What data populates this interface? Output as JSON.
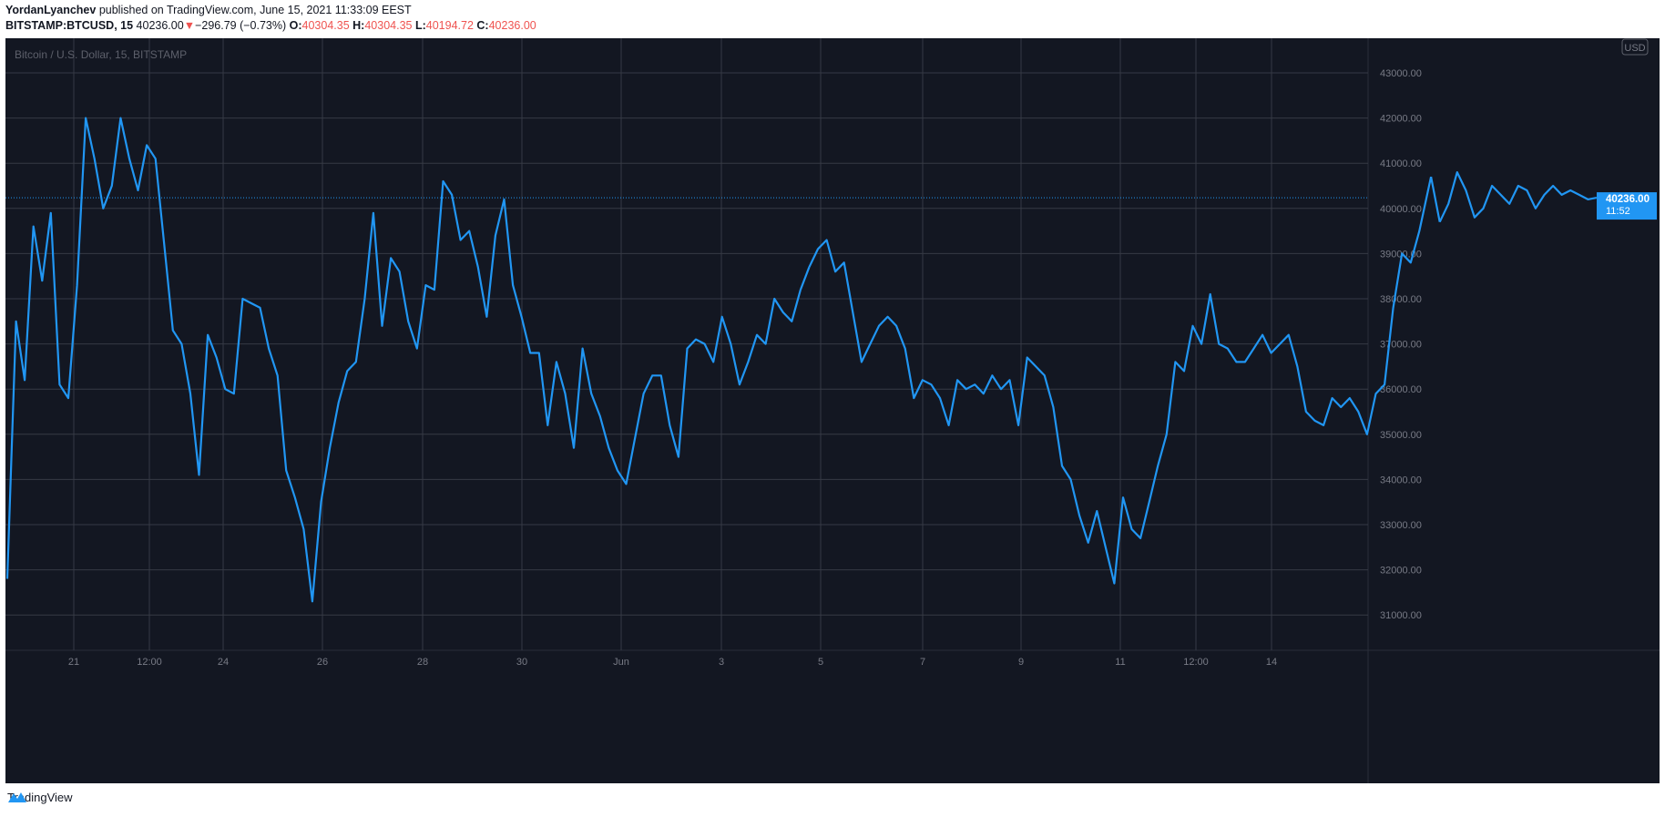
{
  "header": {
    "author": "YordanLyanchev",
    "published_text": "published on TradingView.com, June 15, 2021 11:33:09 EEST",
    "symbol": "BITSTAMP:BTCUSD, 15",
    "last": "40236.00",
    "change_arrow": "▼",
    "change": "−296.79 (−0.73%)",
    "o_label": "O:",
    "o_value": "40304.35",
    "h_label": "H:",
    "h_value": "40304.35",
    "l_label": "L:",
    "l_value": "40194.72",
    "c_label": "C:",
    "c_value": "40236.00"
  },
  "chart_title": "Bitcoin / U.S. Dollar, 15, BITSTAMP",
  "currency_badge": "USD",
  "price_tag": {
    "price": "40236.00",
    "countdown": "11:52"
  },
  "footer": {
    "brand": "TradingView"
  },
  "colors": {
    "background": "#131722",
    "line": "#2196f3",
    "grid": "#363a45",
    "axis_text": "#787b86",
    "down": "#ef5350"
  },
  "chart_data": {
    "type": "line",
    "title": "Bitcoin / U.S. Dollar, 15, BITSTAMP",
    "ylim": [
      30300,
      43700
    ],
    "y_ticks": [
      "43000.00",
      "42000.00",
      "41000.00",
      "40000.00",
      "39000.00",
      "38000.00",
      "37000.00",
      "36000.00",
      "35000.00",
      "34000.00",
      "33000.00",
      "32000.00",
      "31000.00"
    ],
    "x_ticks": [
      "21",
      "12:00",
      "24",
      "26",
      "28",
      "30",
      "Jun",
      "3",
      "5",
      "7",
      "9",
      "11",
      "12:00",
      "14"
    ],
    "last_price": 40236.0,
    "series": [
      {
        "x": [
          0.0,
          0.3,
          0.6,
          0.9,
          1.2,
          1.5,
          1.8,
          2.1,
          2.4,
          2.7,
          3.0,
          3.3,
          3.6,
          3.9,
          4.2,
          4.5,
          4.8,
          5.1,
          5.4,
          5.7,
          6.0,
          6.3,
          6.6,
          6.9,
          7.2,
          7.5,
          7.8,
          8.1,
          8.4,
          8.7,
          9.0,
          9.3,
          9.6,
          9.9,
          10.2,
          10.5,
          10.8,
          11.1,
          11.4,
          11.7,
          12.0,
          12.3,
          12.6,
          12.9,
          13.2,
          13.5,
          13.8,
          14.1,
          14.4,
          14.7,
          15.0,
          15.3,
          15.6,
          15.9,
          16.2,
          16.5,
          16.8,
          17.1,
          17.4,
          17.7,
          18.0,
          18.3,
          18.6,
          18.9,
          19.2,
          19.5,
          19.8,
          20.1,
          20.4,
          20.7,
          21.0,
          21.3,
          21.6,
          21.9,
          22.2,
          22.5,
          22.8,
          23.1,
          23.4,
          23.7,
          24.0,
          24.3,
          24.6,
          24.9,
          25.2,
          25.5,
          25.8,
          26.1,
          26.4,
          26.7,
          27.0,
          27.3
        ],
        "y": [
          31800,
          37500,
          36200,
          39600,
          38400,
          39900,
          36100,
          35800,
          38300,
          42000,
          41100,
          40000,
          40500,
          42000,
          41100,
          40400,
          41400,
          41100,
          39200,
          37300,
          37000,
          35900,
          34100,
          37200,
          36700,
          36000,
          35900,
          38000,
          37900,
          37800,
          36900,
          36300,
          34200,
          33600,
          32900,
          31300,
          33500,
          34700,
          35700,
          36400,
          36600,
          38000,
          39900,
          37400,
          38900,
          38600,
          37500,
          36900,
          38300,
          38200,
          40600,
          40300,
          39300,
          39500,
          38700,
          37600,
          39400,
          40200,
          38300,
          37600,
          36800,
          36800,
          35200,
          36600,
          35900,
          34700,
          36900,
          35900,
          35400,
          34700,
          34200,
          33900,
          34900,
          35900,
          36300,
          36300,
          35200,
          34500,
          36900,
          37100,
          37000,
          36600,
          37600,
          37000,
          36100,
          36600,
          37200,
          37000,
          38000,
          37700,
          37500,
          38200
        ]
      },
      {
        "x": [
          27.6,
          27.9,
          28.2,
          28.5,
          28.8,
          29.1,
          29.4,
          29.7,
          30.0,
          30.3,
          30.6,
          30.9,
          31.2,
          31.5,
          31.8,
          32.1,
          32.4,
          32.7,
          33.0,
          33.3,
          33.6,
          33.9,
          34.2,
          34.5,
          34.8,
          35.1,
          35.4,
          35.7,
          36.0,
          36.3,
          36.6,
          36.9,
          37.2,
          37.5,
          37.8,
          38.1,
          38.4,
          38.7,
          39.0,
          39.3,
          39.6,
          39.9,
          40.2,
          40.5,
          40.8,
          41.1,
          41.4,
          41.7,
          42.0,
          42.3,
          42.6,
          42.9,
          43.2,
          43.5,
          43.8,
          44.1,
          44.4,
          44.7,
          45.0,
          45.3,
          45.6,
          45.9,
          46.2,
          46.5,
          46.8,
          47.1,
          47.4,
          47.7,
          48.0,
          48.3,
          48.6,
          49.0
        ],
        "y": [
          38700,
          39100,
          39300,
          38600,
          38800,
          37700,
          36600,
          37000,
          37400,
          37600,
          37400,
          36900,
          35800,
          36200,
          36100,
          35800,
          35200,
          36200,
          36000,
          36100,
          35900,
          36300,
          36000,
          36200,
          35200,
          36700,
          36500,
          36300,
          35600,
          34300,
          34000,
          33200,
          32600,
          33300,
          32500,
          31700,
          33600,
          32900,
          32700,
          33500,
          34300,
          35000,
          36600,
          36400,
          37400,
          37000,
          38100,
          37000,
          36900,
          36600,
          36600,
          36900,
          37200,
          36800,
          37000,
          37200,
          36500,
          35500,
          35300,
          35200,
          35800,
          35600,
          35800,
          35500,
          35000,
          35900,
          36100,
          37800,
          39000,
          38800,
          39500,
          40700
        ]
      },
      {
        "x": [
          49.3,
          49.6,
          49.9,
          50.2,
          50.5,
          50.8,
          51.1,
          51.4,
          51.7,
          52.0,
          52.3,
          52.6,
          52.9,
          53.2,
          53.5,
          53.8,
          54.1,
          54.4,
          54.7
        ],
        "y": [
          39700,
          40100,
          40800,
          40400,
          39800,
          40000,
          40500,
          40300,
          40100,
          40500,
          40400,
          40000,
          40300,
          40500,
          40300,
          40400,
          40300,
          40200,
          40236
        ]
      }
    ]
  }
}
